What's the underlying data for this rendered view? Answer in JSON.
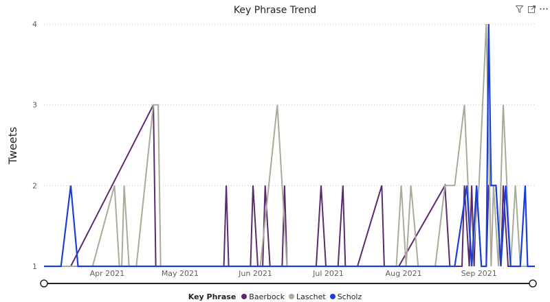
{
  "visual": {
    "title": "Key Phrase Trend"
  },
  "header_icons": [
    "filter-icon",
    "focus-mode-icon",
    "more-options-icon"
  ],
  "chart_data": {
    "type": "line",
    "title": "Key Phrase Trend",
    "xlabel": "",
    "ylabel": "Tweets",
    "x_ticks": [
      "Apr 2021",
      "May 2021",
      "Jun 2021",
      "Jul 2021",
      "Aug 2021",
      "Sep 2021"
    ],
    "y_ticks": [
      1,
      2,
      3,
      4
    ],
    "ylim": [
      1,
      4
    ],
    "xlim": [
      "2021-03-06",
      "2021-09-24"
    ],
    "grid": "horizontal-dotted",
    "legend": {
      "title": "Key Phrase",
      "position": "bottom"
    },
    "series": [
      {
        "name": "Baerbock",
        "color": "#5b2a6e",
        "points": [
          [
            "2021-03-06",
            1
          ],
          [
            "2021-03-17",
            1
          ],
          [
            "2021-04-20",
            3
          ],
          [
            "2021-04-21",
            1
          ],
          [
            "2021-05-19",
            1
          ],
          [
            "2021-05-20",
            2
          ],
          [
            "2021-05-21",
            1
          ],
          [
            "2021-05-30",
            1
          ],
          [
            "2021-05-31",
            2
          ],
          [
            "2021-06-02",
            1
          ],
          [
            "2021-06-04",
            1
          ],
          [
            "2021-06-05",
            2
          ],
          [
            "2021-06-07",
            1
          ],
          [
            "2021-06-12",
            1
          ],
          [
            "2021-06-13",
            2
          ],
          [
            "2021-06-14",
            1
          ],
          [
            "2021-06-26",
            1
          ],
          [
            "2021-06-28",
            2
          ],
          [
            "2021-06-30",
            1
          ],
          [
            "2021-07-05",
            1
          ],
          [
            "2021-07-07",
            2
          ],
          [
            "2021-07-08",
            1
          ],
          [
            "2021-07-13",
            1
          ],
          [
            "2021-07-23",
            2
          ],
          [
            "2021-07-24",
            1
          ],
          [
            "2021-07-30",
            1
          ],
          [
            "2021-08-18",
            2
          ],
          [
            "2021-08-20",
            1
          ],
          [
            "2021-08-25",
            1
          ],
          [
            "2021-08-26",
            2
          ],
          [
            "2021-08-28",
            1
          ],
          [
            "2021-08-29",
            2
          ],
          [
            "2021-08-30",
            1
          ],
          [
            "2021-08-31",
            2
          ],
          [
            "2021-09-02",
            1
          ],
          [
            "2021-09-04",
            1
          ],
          [
            "2021-09-05",
            2
          ],
          [
            "2021-09-08",
            2
          ],
          [
            "2021-09-10",
            1
          ],
          [
            "2021-09-11",
            2
          ],
          [
            "2021-09-13",
            1
          ],
          [
            "2021-09-24",
            1
          ]
        ]
      },
      {
        "name": "Laschet",
        "color": "#a8ab98",
        "points": [
          [
            "2021-03-06",
            1
          ],
          [
            "2021-03-26",
            1
          ],
          [
            "2021-04-04",
            2
          ],
          [
            "2021-04-06",
            1
          ],
          [
            "2021-04-07",
            1
          ],
          [
            "2021-04-08",
            2
          ],
          [
            "2021-04-10",
            1
          ],
          [
            "2021-04-13",
            1
          ],
          [
            "2021-04-20",
            3
          ],
          [
            "2021-04-22",
            3
          ],
          [
            "2021-04-23",
            1
          ],
          [
            "2021-06-03",
            1
          ],
          [
            "2021-06-10",
            3
          ],
          [
            "2021-06-14",
            1
          ],
          [
            "2021-07-29",
            1
          ],
          [
            "2021-07-31",
            2
          ],
          [
            "2021-08-02",
            1
          ],
          [
            "2021-08-04",
            2
          ],
          [
            "2021-08-07",
            1
          ],
          [
            "2021-08-14",
            1
          ],
          [
            "2021-08-18",
            2
          ],
          [
            "2021-08-22",
            2
          ],
          [
            "2021-08-26",
            3
          ],
          [
            "2021-08-29",
            1
          ],
          [
            "2021-09-01",
            2
          ],
          [
            "2021-09-04",
            4
          ],
          [
            "2021-09-06",
            1
          ],
          [
            "2021-09-07",
            2
          ],
          [
            "2021-09-09",
            1
          ],
          [
            "2021-09-11",
            3
          ],
          [
            "2021-09-14",
            1
          ],
          [
            "2021-09-16",
            2
          ],
          [
            "2021-09-18",
            1
          ],
          [
            "2021-09-24",
            1
          ]
        ]
      },
      {
        "name": "Scholz",
        "color": "#1a3fd6",
        "points": [
          [
            "2021-03-06",
            1
          ],
          [
            "2021-03-13",
            1
          ],
          [
            "2021-03-17",
            2
          ],
          [
            "2021-03-20",
            1
          ],
          [
            "2021-08-22",
            1
          ],
          [
            "2021-08-27",
            2
          ],
          [
            "2021-08-29",
            1
          ],
          [
            "2021-08-31",
            2
          ],
          [
            "2021-09-02",
            1
          ],
          [
            "2021-09-04",
            1
          ],
          [
            "2021-09-05",
            4
          ],
          [
            "2021-09-06",
            2
          ],
          [
            "2021-09-08",
            2
          ],
          [
            "2021-09-10",
            1
          ],
          [
            "2021-09-12",
            2
          ],
          [
            "2021-09-14",
            1
          ],
          [
            "2021-09-18",
            1
          ],
          [
            "2021-09-20",
            2
          ],
          [
            "2021-09-21",
            1
          ],
          [
            "2021-09-24",
            1
          ]
        ]
      }
    ]
  }
}
